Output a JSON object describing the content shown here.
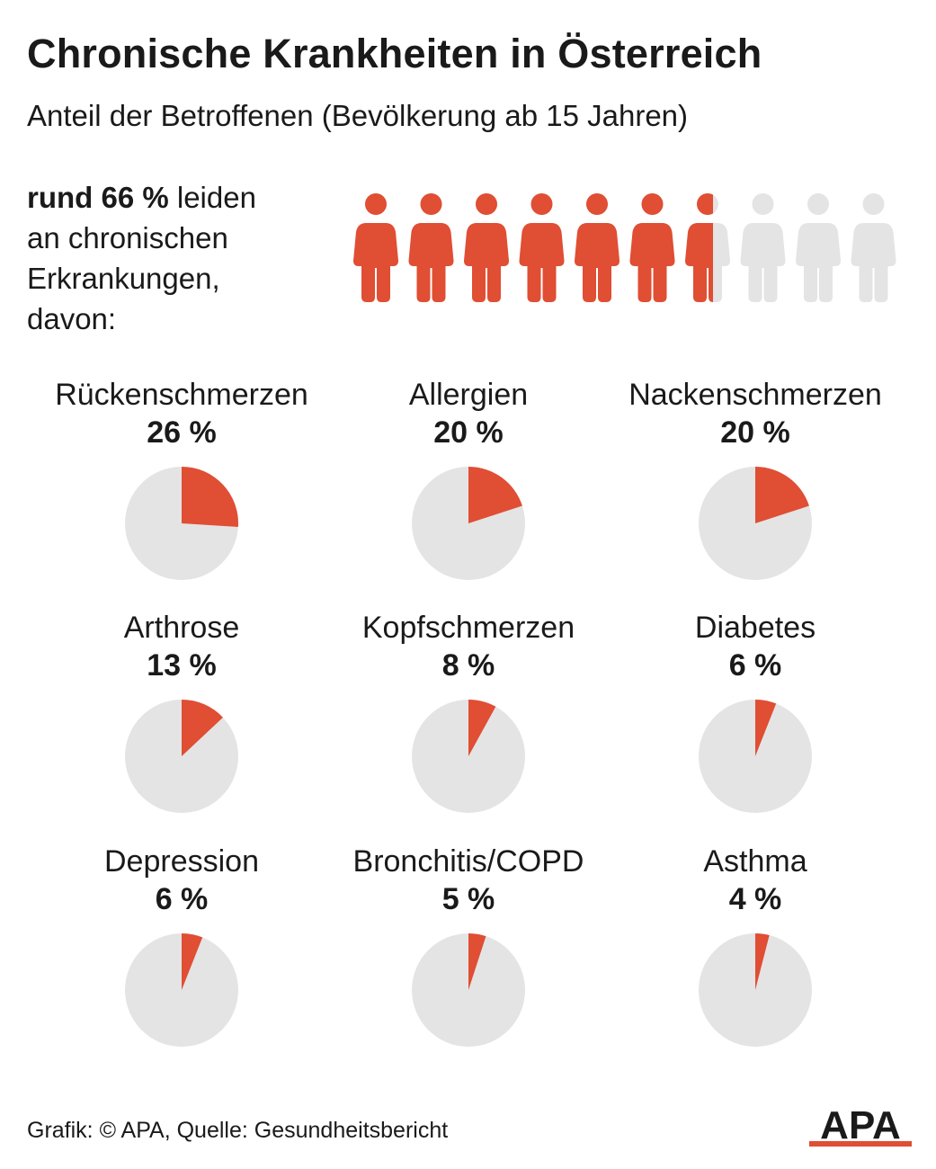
{
  "title": "Chronische Krankheiten in Österreich",
  "subtitle": "Anteil der Betroffenen (Bevölkerung ab 15 Jahren)",
  "intro": {
    "bold": "rund 66 %",
    "rest": "leiden",
    "line2": "an chronischen",
    "line3": "Erkrankungen,",
    "line4": "davon:"
  },
  "colors": {
    "accent": "#e04e33",
    "neutral": "#e4e4e4",
    "text": "#1a1a1a"
  },
  "chart_data": [
    {
      "type": "pictogram",
      "icon": "person-icon",
      "total_icons": 10,
      "filled_share": 66
    },
    {
      "type": "pie",
      "unit": "%",
      "categories": [
        "Rückenschmerzen",
        "Allergien",
        "Nackenschmerzen",
        "Arthrose",
        "Kopfschmerzen",
        "Diabetes",
        "Depression",
        "Bronchitis/COPD",
        "Asthma"
      ],
      "values": [
        26,
        20,
        20,
        13,
        8,
        6,
        6,
        5,
        4
      ],
      "value_labels": [
        "26 %",
        "20 %",
        "20 %",
        "13 %",
        "8 %",
        "6 %",
        "6 %",
        "5 %",
        "4 %"
      ]
    }
  ],
  "footer": "Grafik: © APA, Quelle: Gesundheitsbericht",
  "logo_text": "APA"
}
